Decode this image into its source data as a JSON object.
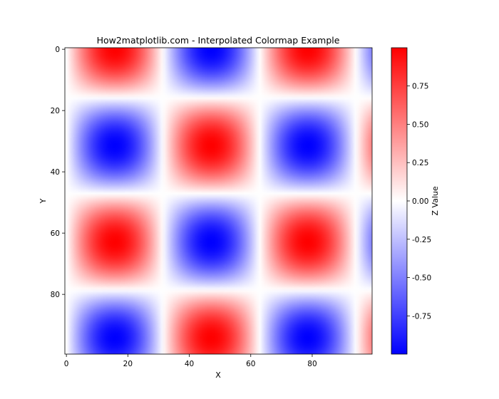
{
  "chart_data": {
    "type": "heatmap",
    "title": "How2matplotlib.com - Interpolated Colormap Example",
    "xlabel": "X",
    "ylabel": "Y",
    "xlim": [
      0,
      99
    ],
    "ylim": [
      99,
      0
    ],
    "x_ticks": [
      0,
      20,
      40,
      60,
      80
    ],
    "y_ticks": [
      0,
      20,
      40,
      60,
      80
    ],
    "grid": false,
    "function": "sin(x/10) * cos(y/10)",
    "grid_size": 100,
    "colormap": {
      "name": "bwr",
      "stops": [
        "#0000ff",
        "#ffffff",
        "#ff0000"
      ],
      "vmin": -1,
      "vmax": 1
    },
    "colorbar": {
      "label": "Z Value",
      "ticks": [
        0.75,
        0.5,
        0.25,
        0.0,
        -0.25,
        -0.5,
        -0.75
      ],
      "tick_labels": [
        "0.75",
        "0.50",
        "0.25",
        "0.00",
        "-0.25",
        "-0.50",
        "-0.75"
      ],
      "range": [
        -0.9995,
        0.9995
      ]
    }
  }
}
